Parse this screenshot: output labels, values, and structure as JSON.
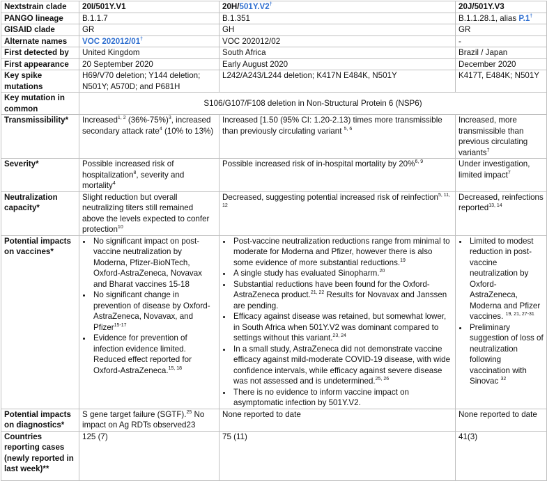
{
  "colors": {
    "link": "#2f6fd0",
    "border": "#bfbfbf"
  },
  "rows": [
    {
      "label": "Nextstrain clade",
      "header": true,
      "cells": [
        [
          {
            "t": "20I/501Y.V1"
          }
        ],
        [
          {
            "t": "20H/"
          },
          {
            "t": "501Y.V2",
            "link": true
          },
          {
            "t": "†",
            "sup": true,
            "link": true
          }
        ],
        [
          {
            "t": "20J/501Y.V3"
          }
        ]
      ]
    },
    {
      "label": "PANGO lineage",
      "cells": [
        [
          {
            "t": "B.1.1.7"
          }
        ],
        [
          {
            "t": "B.1.351"
          }
        ],
        [
          {
            "t": "B.1.1.28.1, alias "
          },
          {
            "t": "P.1",
            "link": true
          },
          {
            "t": "†",
            "sup": true,
            "link": true
          }
        ]
      ]
    },
    {
      "label": "GISAID clade",
      "cells": [
        [
          {
            "t": "GR"
          }
        ],
        [
          {
            "t": "GH"
          }
        ],
        [
          {
            "t": "GR"
          }
        ]
      ]
    },
    {
      "label": "Alternate names",
      "cells": [
        [
          {
            "t": "VOC 202012/01",
            "link": true
          },
          {
            "t": "†",
            "sup": true,
            "link": true
          }
        ],
        [
          {
            "t": "VOC 202012/02"
          }
        ],
        [
          {
            "t": "-"
          }
        ]
      ]
    },
    {
      "label": "First detected by",
      "cells": [
        [
          {
            "t": "United Kingdom"
          }
        ],
        [
          {
            "t": "South Africa"
          }
        ],
        [
          {
            "t": "Brazil / Japan"
          }
        ]
      ]
    },
    {
      "label": "First appearance",
      "cells": [
        [
          {
            "t": "20 September 2020"
          }
        ],
        [
          {
            "t": "Early August 2020"
          }
        ],
        [
          {
            "t": "December 2020"
          }
        ]
      ]
    },
    {
      "label": "Key spike mutations",
      "cells": [
        [
          {
            "t": "H69/V70 deletion; Y144 deletion; N501Y; A570D;  and P681H"
          }
        ],
        [
          {
            "t": "L242/A243/L244 deletion; K417N E484K, N501Y"
          }
        ],
        [
          {
            "t": "K417T, E484K; N501Y"
          }
        ]
      ]
    },
    {
      "label": "Key mutation in common",
      "span": true,
      "cells": [
        [
          {
            "t": "S106/G107/F108 deletion in Non-Structural Protein 6 (NSP6)"
          }
        ]
      ]
    },
    {
      "label": "Transmissibility*",
      "cells": [
        [
          {
            "t": "Increased"
          },
          {
            "t": "1, 2",
            "sup": true
          },
          {
            "t": " (36%-75%)"
          },
          {
            "t": "3",
            "sup": true
          },
          {
            "t": ", increased secondary attack rate"
          },
          {
            "t": "4",
            "sup": true
          },
          {
            "t": " (10% to 13%)"
          }
        ],
        [
          {
            "t": "Increased [1.50 (95% CI: 1.20-2.13) times more transmissible than previously circulating variant "
          },
          {
            "t": "5, 6",
            "sup": true
          }
        ],
        [
          {
            "t": "Increased, more transmissible than previous circulating variants"
          },
          {
            "t": "7",
            "sup": true
          }
        ]
      ]
    },
    {
      "label": "Severity*",
      "cells": [
        [
          {
            "t": "Possible increased risk of hospitalization"
          },
          {
            "t": "8",
            "sup": true
          },
          {
            "t": ", severity and mortality"
          },
          {
            "t": "4",
            "sup": true
          }
        ],
        [
          {
            "t": "Possible increased risk of in-hospital mortality by 20%"
          },
          {
            "t": "6, 9",
            "sup": true
          }
        ],
        [
          {
            "t": "Under investigation, limited impact"
          },
          {
            "t": "7",
            "sup": true
          }
        ]
      ]
    },
    {
      "label": "Neutralization capacity*",
      "cells": [
        [
          {
            "t": "Slight reduction but overall neutralizing titers still remained above the levels expected to confer protection"
          },
          {
            "t": "10",
            "sup": true
          }
        ],
        [
          {
            "t": "Decreased, suggesting potential increased risk of reinfection"
          },
          {
            "t": "5, 11, 12",
            "sup": true
          }
        ],
        [
          {
            "t": "Decreased, reinfections reported"
          },
          {
            "t": "13, 14",
            "sup": true
          }
        ]
      ]
    },
    {
      "label": "Potential impacts on vaccines*",
      "bullets": true,
      "cells": [
        [
          [
            {
              "t": "No significant impact on post-vaccine neutralization by Moderna, Pfizer-BioNTech, Oxford-AstraZeneca, Novavax and Bharat vaccines 15-18"
            }
          ],
          [
            {
              "t": "No significant change in prevention of disease by Oxford-AstraZeneca, Novavax, and Pfizer"
            },
            {
              "t": "15-17",
              "sup": true
            }
          ],
          [
            {
              "t": "Evidence for prevention of infection evidence limited. Reduced effect reported for Oxford-AstraZeneca."
            },
            {
              "t": "15, 18",
              "sup": true
            }
          ]
        ],
        [
          [
            {
              "t": "Post-vaccine neutralization reductions range from minimal to moderate for Moderna and Pfizer, however there is also some evidence of more substantial reductions."
            },
            {
              "t": "19",
              "sup": true
            }
          ],
          [
            {
              "t": "A single study has evaluated Sinopharm."
            },
            {
              "t": "20",
              "sup": true
            }
          ],
          [
            {
              "t": "Substantial reductions have been found for the Oxford-AstraZeneca product."
            },
            {
              "t": "21, 22",
              "sup": true
            },
            {
              "t": " Results for Novavax and Janssen are pending."
            }
          ],
          [
            {
              "t": "Efficacy against disease was retained, but somewhat lower, in South Africa when 501Y.V2 was dominant compared to settings without this variant."
            },
            {
              "t": "23, 24",
              "sup": true
            }
          ],
          [
            {
              "t": "In a small study, AstraZeneca did not demonstrate vaccine efficacy against mild-moderate COVID-19 disease, with wide confidence intervals, while efficacy against  severe disease was not assessed and is undetermined."
            },
            {
              "t": "25, 26",
              "sup": true
            }
          ],
          [
            {
              "t": "There is no evidence to inform vaccine impact on asymptomatic infection by 501Y.V2."
            }
          ]
        ],
        [
          [
            {
              "t": "Limited to modest reduction in post-vaccine neutralization by Oxford-AstraZeneca, Moderna and Pfizer vaccines. "
            },
            {
              "t": "19, 21, 27-31",
              "sup": true
            }
          ],
          [
            {
              "t": "Preliminary suggestion of loss of neutralization following vaccination with Sinovac "
            },
            {
              "t": "32",
              "sup": true
            }
          ]
        ]
      ]
    },
    {
      "label": "Potential impacts on diagnostics*",
      "cells": [
        [
          {
            "t": "S gene target failure (SGTF)."
          },
          {
            "t": "25",
            "sup": true
          },
          {
            "t": " No impact on Ag RDTs observed23"
          }
        ],
        [
          {
            "t": "None reported to date"
          }
        ],
        [
          {
            "t": "None reported to date"
          }
        ]
      ]
    },
    {
      "label": "Countries reporting cases (newly reported in last week)**",
      "last": true,
      "cells": [
        [
          {
            "t": "125 (7)"
          }
        ],
        [
          {
            "t": "75 (11)"
          }
        ],
        [
          {
            "t": "41(3)"
          }
        ]
      ]
    }
  ]
}
